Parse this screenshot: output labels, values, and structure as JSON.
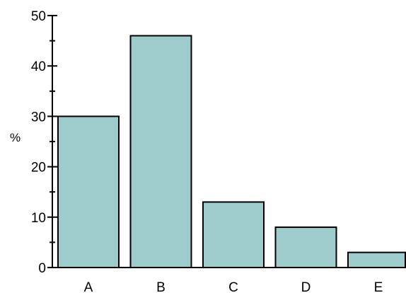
{
  "chart_data": {
    "type": "bar",
    "categories": [
      "A",
      "B",
      "C",
      "D",
      "E"
    ],
    "values": [
      30,
      46,
      13,
      8,
      3
    ],
    "ylabel": "%",
    "ylim": [
      0,
      50
    ],
    "yticks": [
      0,
      10,
      20,
      30,
      40,
      50
    ],
    "grid": false,
    "bar_color": "#9ecbcb"
  }
}
